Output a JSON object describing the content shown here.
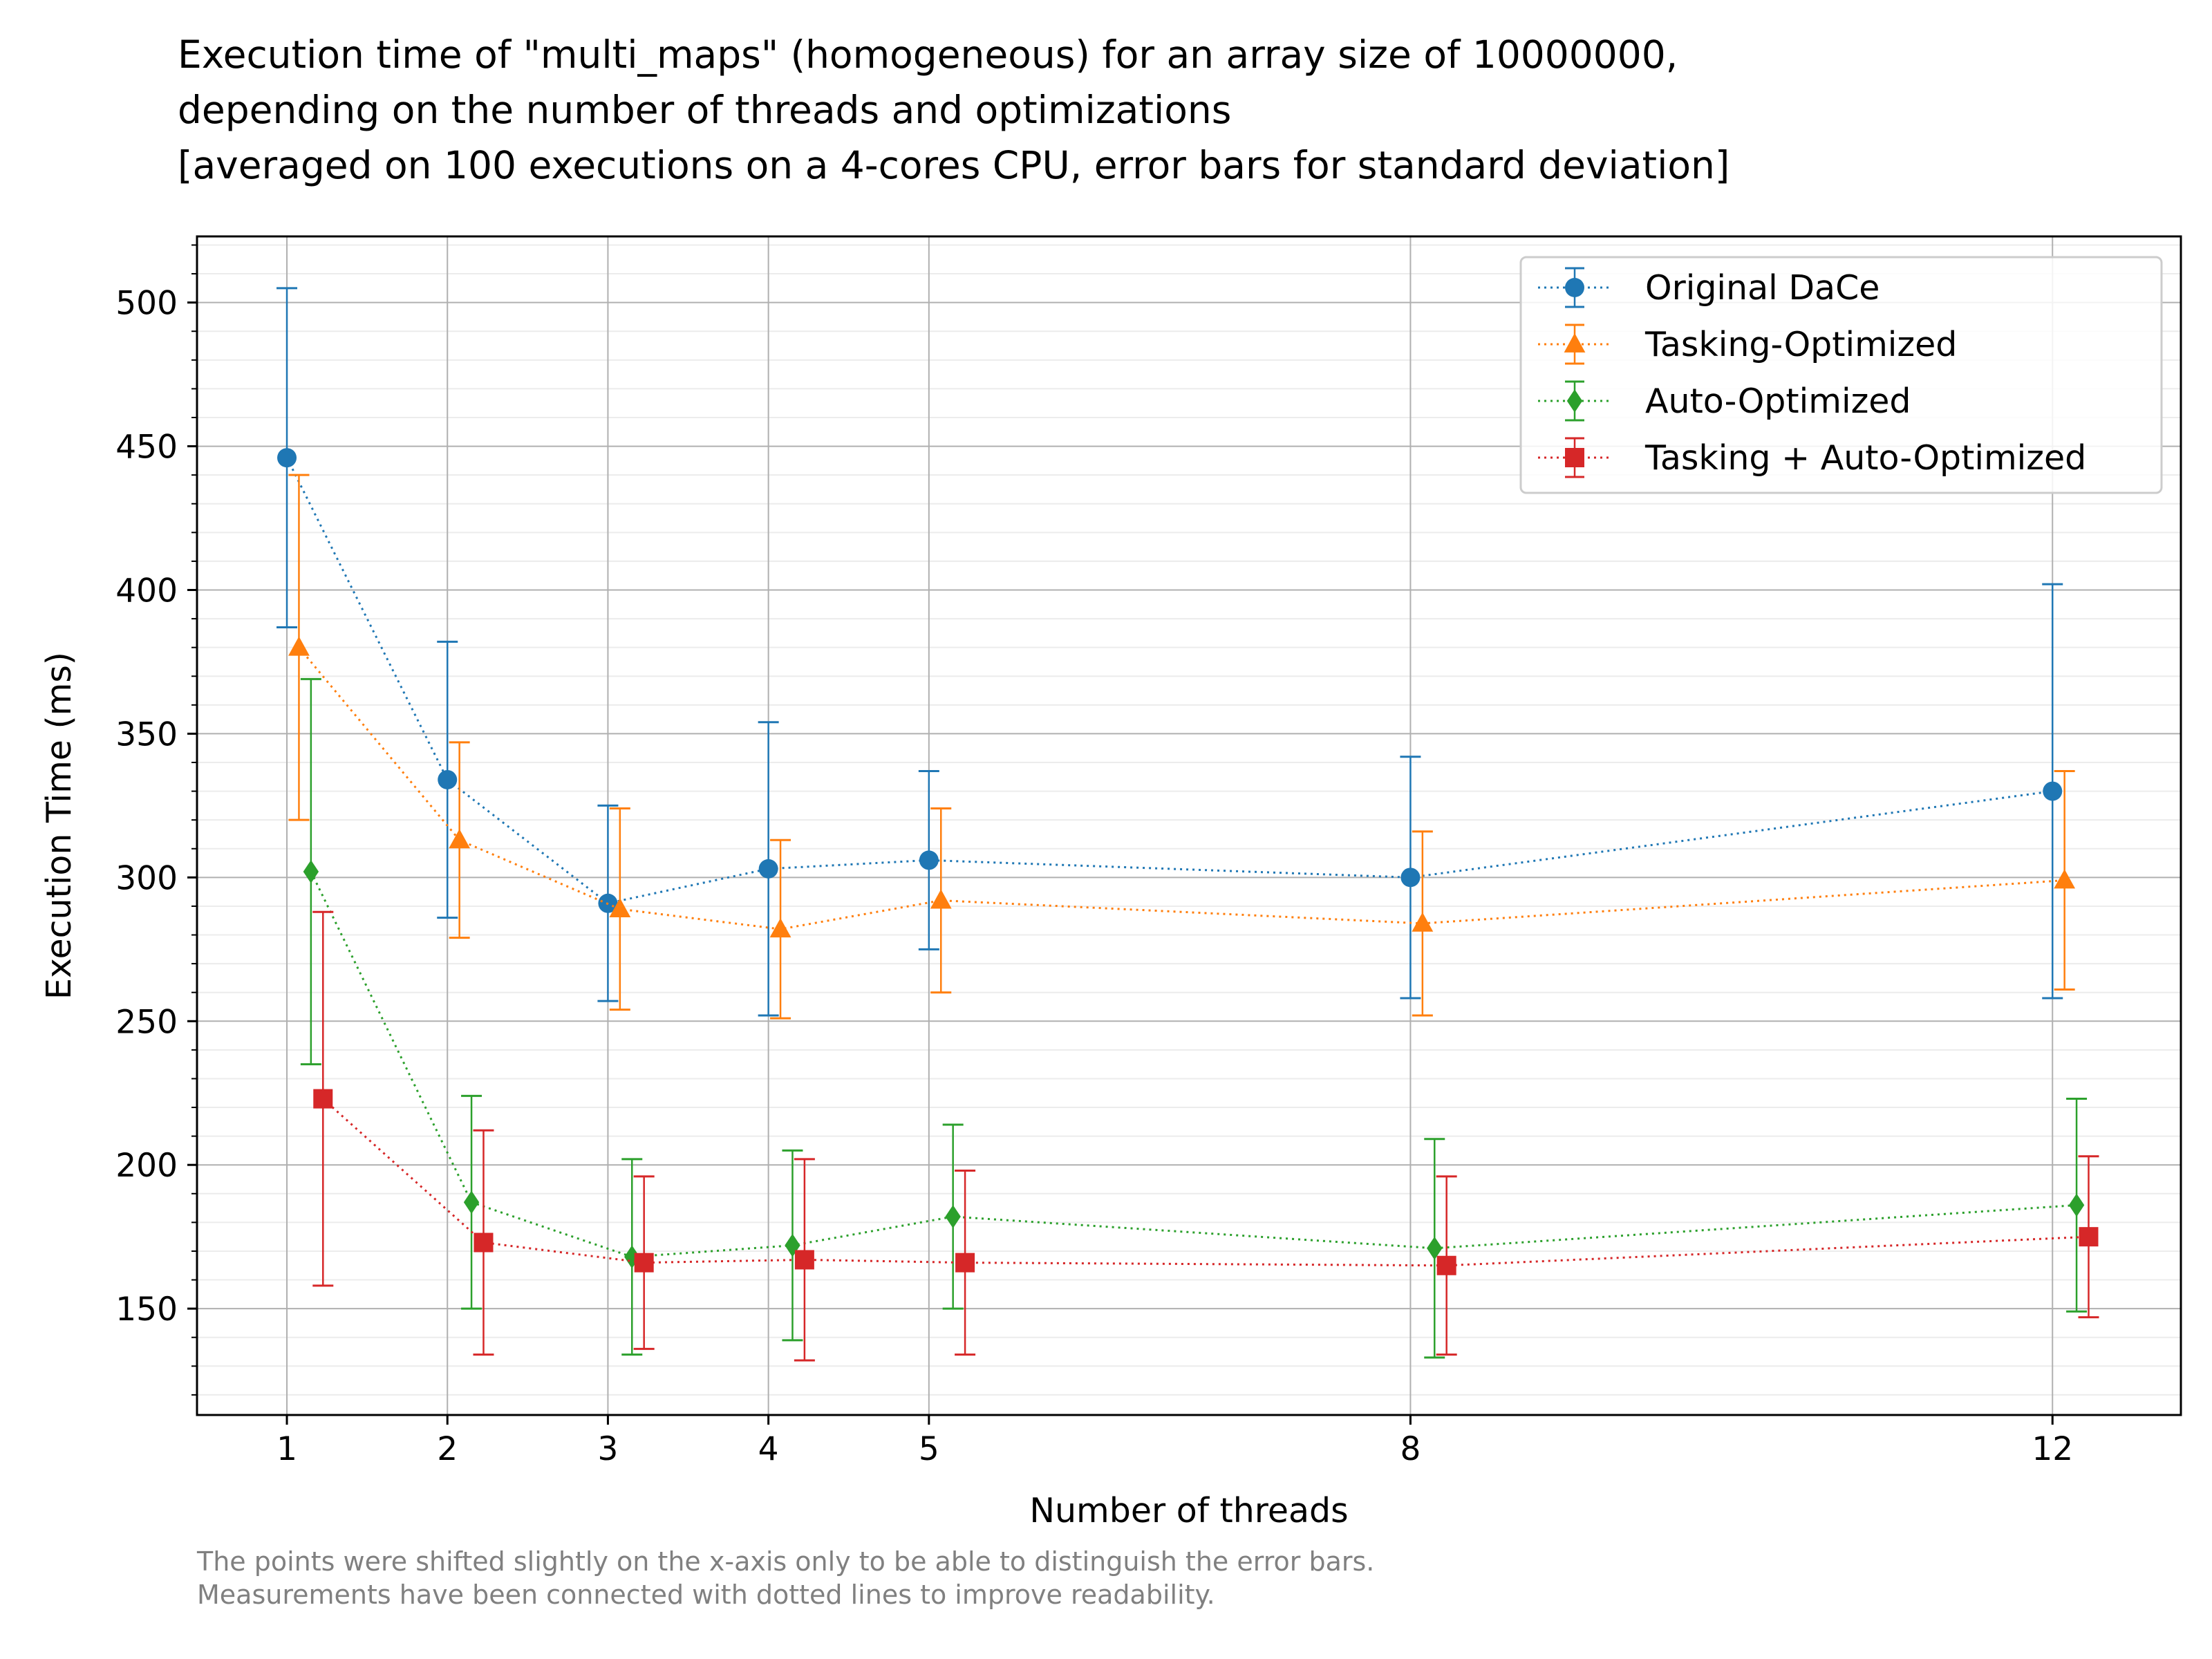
{
  "chart_data": {
    "type": "scatter",
    "title_lines": [
      "Execution time of \"multi_maps\" (homogeneous) for an array size of 10000000,",
      "depending on the number of threads and optimizations",
      "[averaged on 100 executions on a 4-cores CPU, error bars for standard deviation]"
    ],
    "xlabel": "Number of threads",
    "ylabel": "Execution Time (ms)",
    "xticks": [
      1,
      2,
      3,
      4,
      5,
      8,
      12
    ],
    "yticks": [
      150,
      200,
      250,
      300,
      350,
      400,
      450,
      500
    ],
    "xlim": [
      0.44,
      12.8
    ],
    "ylim": [
      113,
      523
    ],
    "grid": true,
    "legend_position": "top-right",
    "connect_style": "dotted",
    "series": [
      {
        "name": "Original DaCe",
        "color": "#1f77b4",
        "marker": "circle",
        "x": [
          1,
          2,
          3,
          4,
          5,
          8,
          12
        ],
        "offset": 0.0,
        "y": [
          446,
          334,
          291,
          303,
          306,
          300,
          330
        ],
        "yerr": [
          59,
          48,
          34,
          51,
          31,
          42,
          72
        ]
      },
      {
        "name": "Tasking-Optimized",
        "color": "#ff7f0e",
        "marker": "triangle",
        "x": [
          1,
          2,
          3,
          4,
          5,
          8,
          12
        ],
        "offset": 0.075,
        "y": [
          380,
          313,
          289,
          282,
          292,
          284,
          299
        ],
        "yerr": [
          60,
          34,
          35,
          31,
          32,
          32,
          38
        ]
      },
      {
        "name": "Auto-Optimized",
        "color": "#2ca02c",
        "marker": "diamond",
        "x": [
          1,
          2,
          3,
          4,
          5,
          8,
          12
        ],
        "offset": 0.15,
        "y": [
          302,
          187,
          168,
          172,
          182,
          171,
          186
        ],
        "yerr": [
          67,
          37,
          34,
          33,
          32,
          38,
          37
        ]
      },
      {
        "name": "Tasking + Auto-Optimized",
        "color": "#d62728",
        "marker": "square",
        "x": [
          1,
          2,
          3,
          4,
          5,
          8,
          12
        ],
        "offset": 0.225,
        "y": [
          223,
          173,
          166,
          167,
          166,
          165,
          175
        ],
        "yerr": [
          65,
          39,
          30,
          35,
          32,
          31,
          28
        ]
      }
    ],
    "footnote_lines": [
      "The points were shifted slightly on the x-axis only to be able to distinguish the error bars.",
      "Measurements have been connected with dotted lines to improve readability."
    ]
  }
}
